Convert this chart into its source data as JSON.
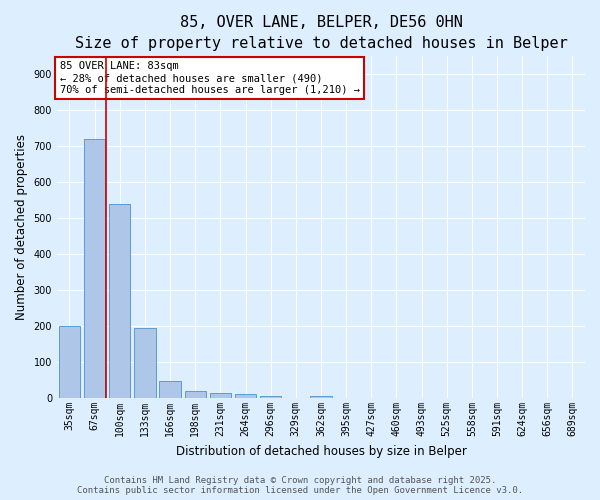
{
  "title1": "85, OVER LANE, BELPER, DE56 0HN",
  "title2": "Size of property relative to detached houses in Belper",
  "xlabel": "Distribution of detached houses by size in Belper",
  "ylabel": "Number of detached properties",
  "categories": [
    "35sqm",
    "67sqm",
    "100sqm",
    "133sqm",
    "166sqm",
    "198sqm",
    "231sqm",
    "264sqm",
    "296sqm",
    "329sqm",
    "362sqm",
    "395sqm",
    "427sqm",
    "460sqm",
    "493sqm",
    "525sqm",
    "558sqm",
    "591sqm",
    "624sqm",
    "656sqm",
    "689sqm"
  ],
  "values": [
    200,
    720,
    540,
    195,
    47,
    20,
    15,
    12,
    7,
    0,
    7,
    0,
    0,
    0,
    0,
    0,
    0,
    0,
    0,
    0,
    0
  ],
  "bar_color": "#aec6e8",
  "bar_edge_color": "#5b9bd5",
  "red_line_x": 1.45,
  "annotation_title": "85 OVER LANE: 83sqm",
  "annotation_line1": "← 28% of detached houses are smaller (490)",
  "annotation_line2": "70% of semi-detached houses are larger (1,210) →",
  "annotation_box_color": "#ffffff",
  "annotation_box_edge_color": "#cc0000",
  "red_line_color": "#cc0000",
  "background_color": "#ddeeff",
  "plot_bg_color": "#ddeeff",
  "grid_color": "#ffffff",
  "ylim": [
    0,
    950
  ],
  "yticks": [
    0,
    100,
    200,
    300,
    400,
    500,
    600,
    700,
    800,
    900
  ],
  "footer1": "Contains HM Land Registry data © Crown copyright and database right 2025.",
  "footer2": "Contains public sector information licensed under the Open Government Licence v3.0.",
  "title_fontsize": 11,
  "subtitle_fontsize": 9.5,
  "axis_label_fontsize": 8.5,
  "tick_fontsize": 7,
  "annotation_fontsize": 7.5,
  "footer_fontsize": 6.5
}
